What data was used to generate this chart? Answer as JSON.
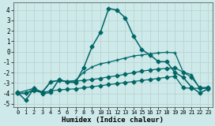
{
  "xlabel": "Humidex (Indice chaleur)",
  "xlim": [
    -0.5,
    23.5
  ],
  "ylim": [
    -5.3,
    4.7
  ],
  "yticks": [
    -5,
    -4,
    -3,
    -2,
    -1,
    0,
    1,
    2,
    3,
    4
  ],
  "xticks": [
    0,
    1,
    2,
    3,
    4,
    5,
    6,
    7,
    8,
    9,
    10,
    11,
    12,
    13,
    14,
    15,
    16,
    17,
    18,
    19,
    20,
    21,
    22,
    23
  ],
  "bg_color": "#cde9e9",
  "line_color": "#006666",
  "grid_color": "#b8d0d0",
  "series": [
    {
      "x": [
        0,
        1,
        2,
        3,
        4,
        5,
        6,
        7,
        8,
        9,
        10,
        11,
        12,
        13,
        14,
        15,
        16,
        17,
        18,
        19,
        20,
        21,
        22,
        23
      ],
      "y": [
        -3.9,
        -4.65,
        -3.5,
        -4.0,
        -3.9,
        -2.65,
        -2.9,
        -2.95,
        -1.5,
        0.5,
        1.85,
        4.15,
        4.0,
        3.25,
        1.5,
        0.2,
        -0.3,
        -0.95,
        -0.95,
        -2.0,
        -2.45,
        -3.4,
        -3.95,
        -3.55
      ],
      "marker": "D",
      "ms": 2.5,
      "lw": 1.1
    },
    {
      "x": [
        0,
        1,
        2,
        3,
        4,
        5,
        6,
        7,
        8,
        9,
        10,
        11,
        12,
        13,
        14,
        15,
        16,
        17,
        18,
        19,
        20,
        21,
        22,
        23
      ],
      "y": [
        -4.0,
        -4.0,
        -3.55,
        -3.85,
        -2.85,
        -2.75,
        -2.85,
        -2.75,
        -1.95,
        -1.45,
        -1.15,
        -1.0,
        -0.8,
        -0.6,
        -0.4,
        -0.3,
        -0.2,
        -0.1,
        -0.05,
        -0.1,
        -1.95,
        -2.2,
        -3.55,
        -3.45
      ],
      "marker": "+",
      "ms": 3.5,
      "lw": 0.9
    },
    {
      "x": [
        0,
        2,
        3,
        4,
        5,
        6,
        7,
        8,
        9,
        10,
        11,
        12,
        13,
        14,
        15,
        16,
        17,
        18,
        19,
        20,
        21,
        22,
        23
      ],
      "y": [
        -3.95,
        -3.5,
        -3.9,
        -2.9,
        -2.75,
        -2.85,
        -2.8,
        -2.75,
        -2.65,
        -2.55,
        -2.4,
        -2.3,
        -2.15,
        -2.0,
        -1.85,
        -1.75,
        -1.65,
        -1.6,
        -1.55,
        -1.95,
        -2.45,
        -3.45,
        -3.4
      ],
      "marker": "D",
      "ms": 2.5,
      "lw": 0.9
    },
    {
      "x": [
        0,
        1,
        2,
        3,
        4,
        5,
        6,
        7,
        8,
        9,
        10,
        11,
        12,
        13,
        14,
        15,
        16,
        17,
        18,
        19,
        20,
        21,
        22,
        23
      ],
      "y": [
        -3.95,
        -3.95,
        -3.75,
        -3.9,
        -3.75,
        -3.65,
        -3.6,
        -3.55,
        -3.45,
        -3.35,
        -3.25,
        -3.15,
        -3.05,
        -2.95,
        -2.85,
        -2.75,
        -2.65,
        -2.55,
        -2.45,
        -2.35,
        -3.45,
        -3.5,
        -3.5,
        -3.5
      ],
      "marker": "D",
      "ms": 2.5,
      "lw": 0.9
    }
  ]
}
